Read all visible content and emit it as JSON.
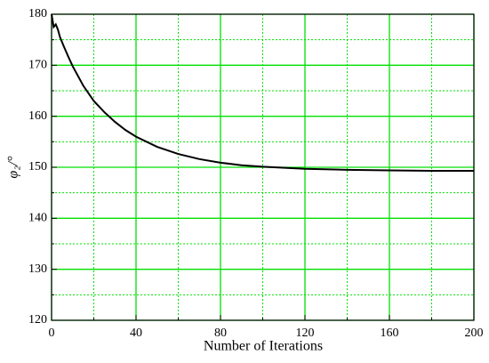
{
  "chart_data": {
    "type": "line",
    "x_label": "Number of Iterations",
    "y_label": "φ₂/°",
    "x": [
      0,
      1,
      2,
      3,
      4,
      6,
      8,
      10,
      15,
      20,
      25,
      30,
      35,
      40,
      50,
      60,
      70,
      80,
      90,
      100,
      120,
      140,
      160,
      180,
      200
    ],
    "series": [
      {
        "color": "#000000",
        "values": [
          180,
          177.5,
          178,
          177,
          175.5,
          173.5,
          171.6,
          169.8,
          166,
          163,
          160.8,
          158.9,
          157.3,
          156,
          154,
          152.6,
          151.6,
          150.9,
          150.4,
          150.1,
          149.7,
          149.5,
          149.4,
          149.3,
          149.3
        ]
      }
    ],
    "xlim": [
      0,
      200
    ],
    "xticks": [
      0,
      40,
      80,
      120,
      160,
      200
    ],
    "ylim": [
      120,
      180
    ],
    "yticks": [
      120,
      130,
      140,
      150,
      160,
      170,
      180
    ],
    "grid": true,
    "minor_grid": true,
    "grid_color": "#00e000"
  }
}
